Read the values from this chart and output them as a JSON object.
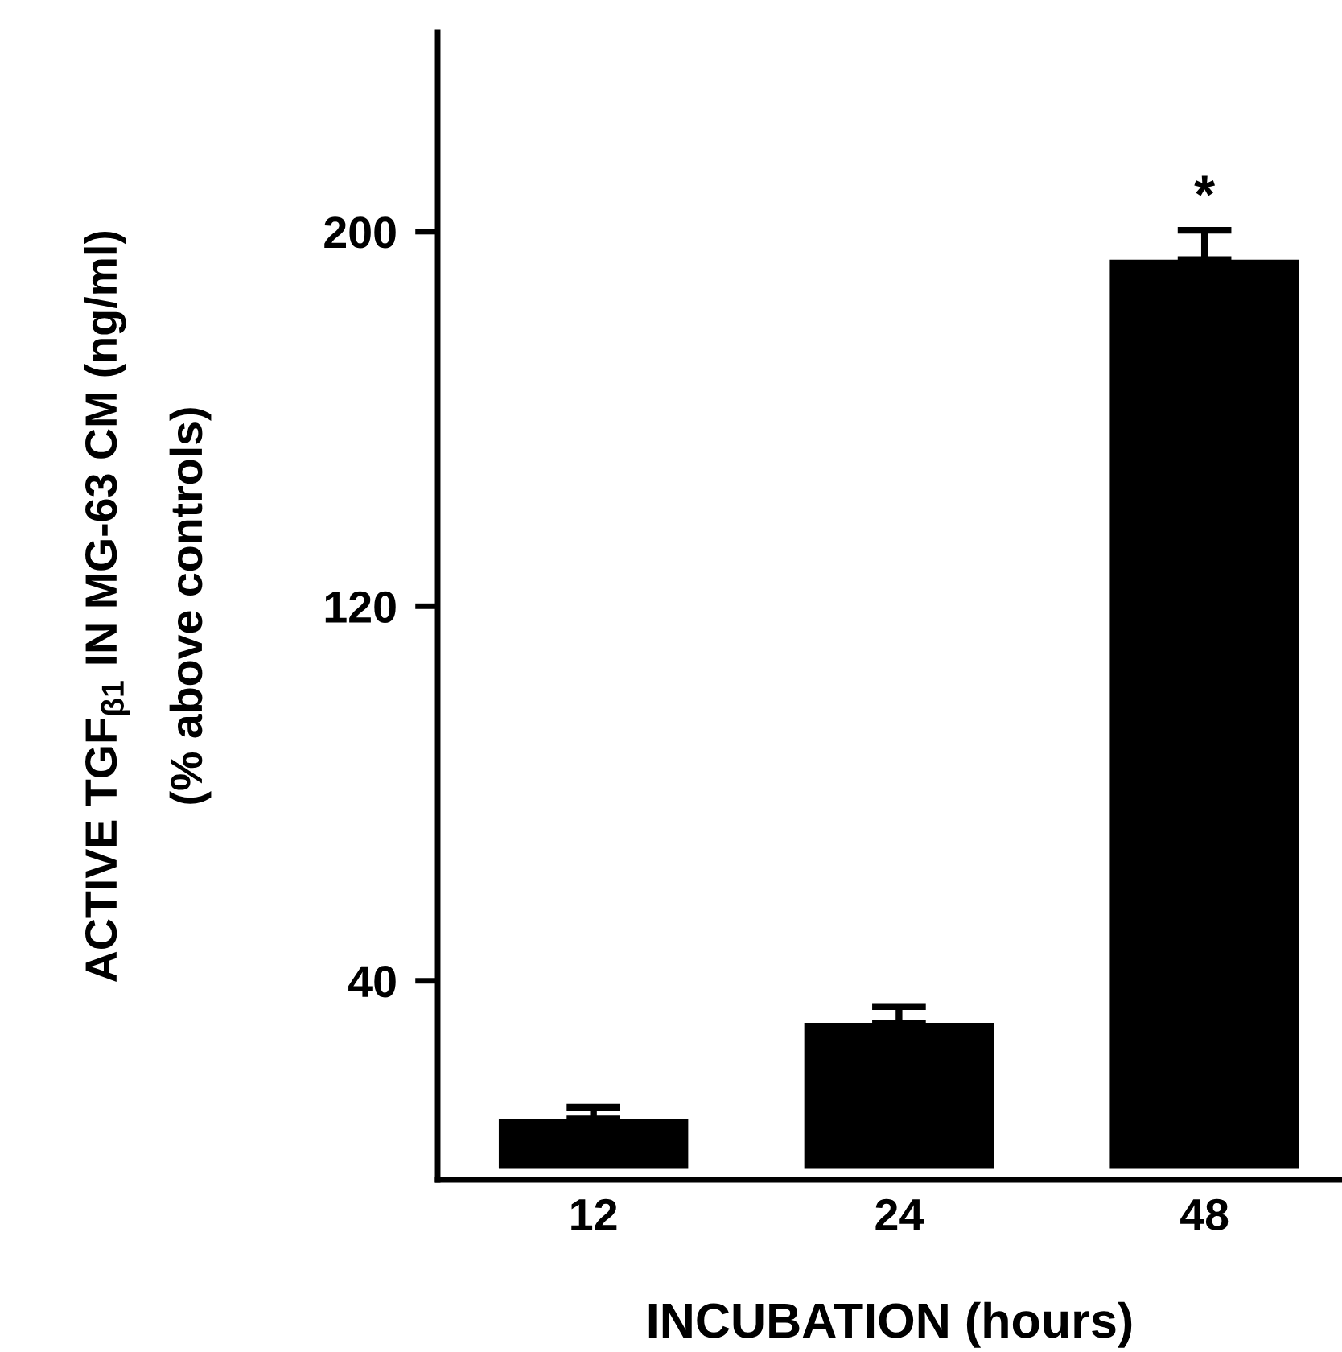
{
  "chart_data": {
    "type": "bar",
    "xlabel": "INCUBATION (hours)",
    "ylabel": "ACTIVE TGF$_{β1}$ IN MG-63 CM (ng/ml)\n(% above controls)",
    "categories": [
      "12",
      "24",
      "48"
    ],
    "values": [
      10.5,
      31,
      194
    ],
    "color": "#000000",
    "errors": [
      [
        10.5,
        13
      ],
      [
        31,
        34.5
      ],
      [
        194,
        200.3
      ]
    ],
    "annotations": [
      {
        "text": "*",
        "x": "48",
        "y": 200.3
      }
    ],
    "ylim": [
      -2.5,
      242.6
    ],
    "yticks": [
      40,
      120,
      200
    ],
    "grid": false
  }
}
